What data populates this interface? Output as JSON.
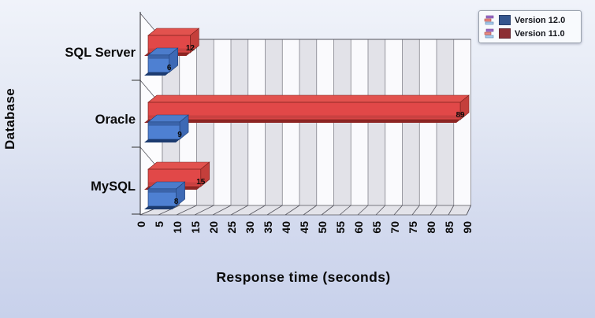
{
  "axes": {
    "x_title": "Response time (seconds)",
    "y_title": "Database"
  },
  "legend": {
    "position": "top-right",
    "entries": [
      {
        "label": "Version 12.0",
        "swatch_color": "#35568E",
        "icon": "mini-bar-chart-icon"
      },
      {
        "label": "Version 11.0",
        "swatch_color": "#8C2F33",
        "icon": "mini-bar-chart-icon"
      }
    ]
  },
  "chart_data": {
    "type": "bar",
    "orientation": "horizontal",
    "style": "3d",
    "title": "",
    "categories": [
      "SQL Server",
      "Oracle",
      "MySQL"
    ],
    "series": [
      {
        "name": "Version 12.0",
        "values": [
          6,
          9,
          8
        ],
        "colors": {
          "front": "#4E80D2",
          "accent": "#3B64AA",
          "top": "#4C7CCB",
          "end": "#3D69B5",
          "bevel": "#1C3B70",
          "edge": "#1E3E74"
        }
      },
      {
        "name": "Version 11.0",
        "values": [
          12,
          89,
          15
        ],
        "colors": {
          "front": "#E14848",
          "accent": "#C94141",
          "top": "#E2524E",
          "end": "#C43F3B",
          "bevel": "#8E2524",
          "edge": "#7A201C"
        }
      }
    ],
    "xlabel": "Response time (seconds)",
    "ylabel": "Database",
    "xlim": [
      0,
      90
    ],
    "xtick_step": 5,
    "value_labels": true,
    "grid": true,
    "legend_position": "top-right",
    "wall_stripe_colors": [
      "#E2E2E8",
      "#FAFAFD"
    ],
    "frame_color": "#55555E",
    "tick_label_color": "#0a0a0a"
  }
}
